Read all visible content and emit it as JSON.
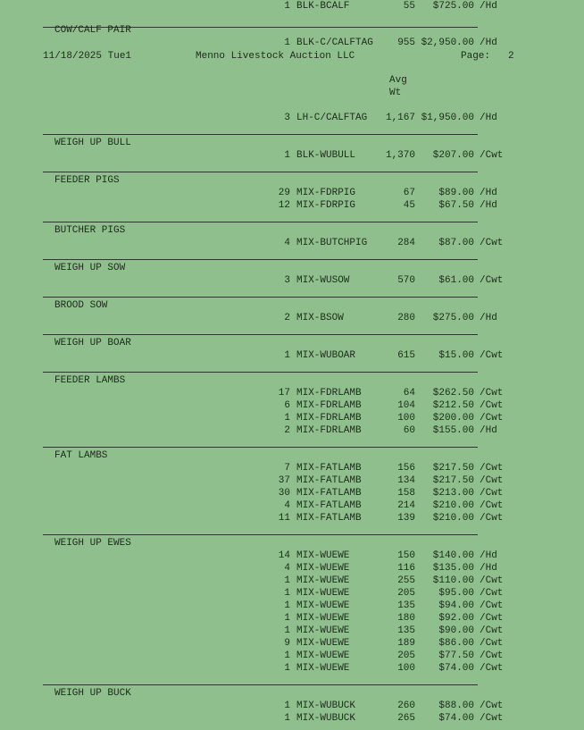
{
  "header": {
    "date": "11/18/2025 Tue1",
    "company": "Menno Livestock Auction LLC",
    "page_label": "Page:",
    "page_number": "2",
    "col_avg": "Avg",
    "col_wt": "Wt"
  },
  "lead_rows": [
    {
      "qty": "1",
      "desc": "BLK-BCALF",
      "wt": "55",
      "price": "$725.00",
      "unit": "/Hd"
    }
  ],
  "sections": [
    {
      "title": "COW/CALF PAIR",
      "rows": [
        {
          "qty": "1",
          "desc": "BLK-C/CALFTAG",
          "wt": "955",
          "price": "$2,950.00",
          "unit": "/Hd"
        }
      ],
      "continued_rows": [
        {
          "qty": "3",
          "desc": "LH-C/CALFTAG",
          "wt": "1,167",
          "price": "$1,950.00",
          "unit": "/Hd"
        }
      ]
    },
    {
      "title": "WEIGH UP BULL",
      "rows": [
        {
          "qty": "1",
          "desc": "BLK-WUBULL",
          "wt": "1,370",
          "price": "$207.00",
          "unit": "/Cwt"
        }
      ]
    },
    {
      "title": "FEEDER PIGS",
      "rows": [
        {
          "qty": "29",
          "desc": "MIX-FDRPIG",
          "wt": "67",
          "price": "$89.00",
          "unit": "/Hd"
        },
        {
          "qty": "12",
          "desc": "MIX-FDRPIG",
          "wt": "45",
          "price": "$67.50",
          "unit": "/Hd"
        }
      ]
    },
    {
      "title": "BUTCHER PIGS",
      "rows": [
        {
          "qty": "4",
          "desc": "MIX-BUTCHPIG",
          "wt": "284",
          "price": "$87.00",
          "unit": "/Cwt"
        }
      ]
    },
    {
      "title": "WEIGH UP SOW",
      "rows": [
        {
          "qty": "3",
          "desc": "MIX-WUSOW",
          "wt": "570",
          "price": "$61.00",
          "unit": "/Cwt"
        }
      ]
    },
    {
      "title": "BROOD SOW",
      "rows": [
        {
          "qty": "2",
          "desc": "MIX-BSOW",
          "wt": "280",
          "price": "$275.00",
          "unit": "/Hd"
        }
      ]
    },
    {
      "title": "WEIGH UP BOAR",
      "rows": [
        {
          "qty": "1",
          "desc": "MIX-WUBOAR",
          "wt": "615",
          "price": "$15.00",
          "unit": "/Cwt"
        }
      ]
    },
    {
      "title": "FEEDER LAMBS",
      "rows": [
        {
          "qty": "17",
          "desc": "MIX-FDRLAMB",
          "wt": "64",
          "price": "$262.50",
          "unit": "/Cwt"
        },
        {
          "qty": "6",
          "desc": "MIX-FDRLAMB",
          "wt": "104",
          "price": "$212.50",
          "unit": "/Cwt"
        },
        {
          "qty": "1",
          "desc": "MIX-FDRLAMB",
          "wt": "100",
          "price": "$200.00",
          "unit": "/Cwt"
        },
        {
          "qty": "2",
          "desc": "MIX-FDRLAMB",
          "wt": "60",
          "price": "$155.00",
          "unit": "/Hd"
        }
      ]
    },
    {
      "title": "FAT LAMBS",
      "rows": [
        {
          "qty": "7",
          "desc": "MIX-FATLAMB",
          "wt": "156",
          "price": "$217.50",
          "unit": "/Cwt"
        },
        {
          "qty": "37",
          "desc": "MIX-FATLAMB",
          "wt": "134",
          "price": "$217.50",
          "unit": "/Cwt"
        },
        {
          "qty": "30",
          "desc": "MIX-FATLAMB",
          "wt": "158",
          "price": "$213.00",
          "unit": "/Cwt"
        },
        {
          "qty": "4",
          "desc": "MIX-FATLAMB",
          "wt": "214",
          "price": "$210.00",
          "unit": "/Cwt"
        },
        {
          "qty": "11",
          "desc": "MIX-FATLAMB",
          "wt": "139",
          "price": "$210.00",
          "unit": "/Cwt"
        }
      ]
    },
    {
      "title": "WEIGH UP EWES",
      "rows": [
        {
          "qty": "14",
          "desc": "MIX-WUEWE",
          "wt": "150",
          "price": "$140.00",
          "unit": "/Hd"
        },
        {
          "qty": "4",
          "desc": "MIX-WUEWE",
          "wt": "116",
          "price": "$135.00",
          "unit": "/Hd"
        },
        {
          "qty": "1",
          "desc": "MIX-WUEWE",
          "wt": "255",
          "price": "$110.00",
          "unit": "/Cwt"
        },
        {
          "qty": "1",
          "desc": "MIX-WUEWE",
          "wt": "205",
          "price": "$95.00",
          "unit": "/Cwt"
        },
        {
          "qty": "1",
          "desc": "MIX-WUEWE",
          "wt": "135",
          "price": "$94.00",
          "unit": "/Cwt"
        },
        {
          "qty": "1",
          "desc": "MIX-WUEWE",
          "wt": "180",
          "price": "$92.00",
          "unit": "/Cwt"
        },
        {
          "qty": "1",
          "desc": "MIX-WUEWE",
          "wt": "135",
          "price": "$90.00",
          "unit": "/Cwt"
        },
        {
          "qty": "9",
          "desc": "MIX-WUEWE",
          "wt": "189",
          "price": "$86.00",
          "unit": "/Cwt"
        },
        {
          "qty": "1",
          "desc": "MIX-WUEWE",
          "wt": "205",
          "price": "$77.50",
          "unit": "/Cwt"
        },
        {
          "qty": "1",
          "desc": "MIX-WUEWE",
          "wt": "100",
          "price": "$74.00",
          "unit": "/Cwt"
        }
      ]
    },
    {
      "title": "WEIGH UP BUCK",
      "rows": [
        {
          "qty": "1",
          "desc": "MIX-WUBUCK",
          "wt": "260",
          "price": "$88.00",
          "unit": "/Cwt"
        },
        {
          "qty": "1",
          "desc": "MIX-WUBUCK",
          "wt": "265",
          "price": "$74.00",
          "unit": "/Cwt"
        }
      ]
    }
  ]
}
